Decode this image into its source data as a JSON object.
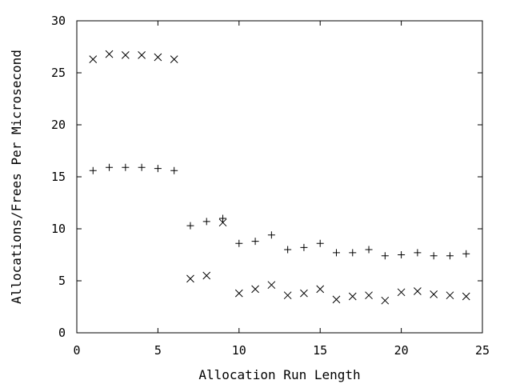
{
  "chart_data": {
    "type": "scatter",
    "title": "",
    "xlabel": "Allocation Run Length",
    "ylabel": "Allocations/Frees Per Microsecond",
    "xlim": [
      0,
      25
    ],
    "ylim": [
      0,
      30
    ],
    "xticks": [
      0,
      5,
      10,
      15,
      20,
      25
    ],
    "yticks": [
      0,
      5,
      10,
      15,
      20,
      25,
      30
    ],
    "grid": false,
    "series": [
      {
        "marker": "plus",
        "x": [
          1,
          2,
          3,
          4,
          5,
          6,
          7,
          8,
          9,
          10,
          11,
          12,
          13,
          14,
          15,
          16,
          17,
          18,
          19,
          20,
          21,
          22,
          23,
          24
        ],
        "y": [
          15.6,
          15.9,
          15.9,
          15.9,
          15.8,
          15.6,
          10.3,
          10.7,
          11.0,
          8.6,
          8.8,
          9.4,
          8.0,
          8.2,
          8.6,
          7.7,
          7.7,
          8.0,
          7.4,
          7.5,
          7.7,
          7.4,
          7.4,
          7.6
        ]
      },
      {
        "marker": "cross",
        "x": [
          1,
          2,
          3,
          4,
          5,
          6,
          7,
          8,
          9,
          10,
          11,
          12,
          13,
          14,
          15,
          16,
          17,
          18,
          19,
          20,
          21,
          22,
          23,
          24
        ],
        "y": [
          26.3,
          26.8,
          26.7,
          26.7,
          26.5,
          26.3,
          5.2,
          5.5,
          10.6,
          3.8,
          4.2,
          4.6,
          3.6,
          3.8,
          4.2,
          3.2,
          3.5,
          3.6,
          3.1,
          3.9,
          4.0,
          3.7,
          3.6,
          3.5
        ]
      }
    ]
  }
}
